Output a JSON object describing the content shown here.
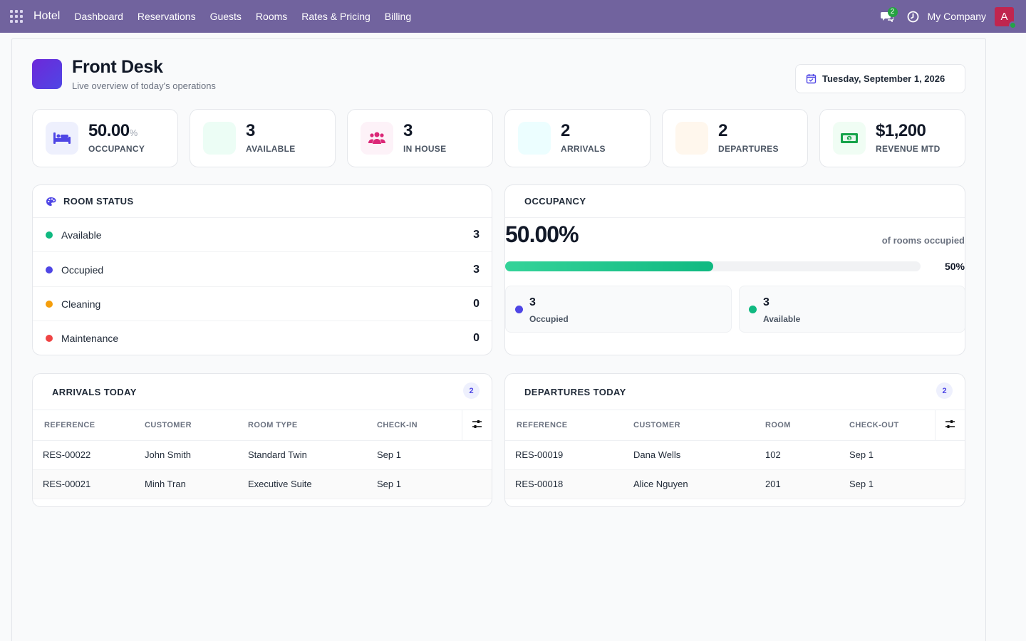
{
  "nav": {
    "brand": "Hotel",
    "menu": [
      "Dashboard",
      "Reservations",
      "Guests",
      "Rooms",
      "Rates & Pricing",
      "Billing"
    ],
    "chat_count": "2",
    "company": "My Company",
    "avatar_letter": "A"
  },
  "header": {
    "title": "Front Desk",
    "subtitle": "Live overview of today's operations",
    "date": "Tuesday, September 1, 2026"
  },
  "stats": [
    {
      "value": "50.00",
      "unit": "%",
      "label": "OCCUPANCY",
      "icon": "bed-icon",
      "color": "#4f46e5"
    },
    {
      "value": "3",
      "label": "AVAILABLE",
      "icon": "check-icon",
      "color": "#10b981"
    },
    {
      "value": "3",
      "label": "IN HOUSE",
      "icon": "users-icon",
      "color": "#db2777"
    },
    {
      "value": "2",
      "label": "ARRIVALS",
      "icon": "arrival-icon",
      "color": "#06b6d4"
    },
    {
      "value": "2",
      "label": "DEPARTURES",
      "icon": "departure-icon",
      "color": "#f97316"
    },
    {
      "value": "$1,200",
      "label": "REVENUE MTD",
      "icon": "money-icon",
      "color": "#16a34a"
    }
  ],
  "room_status": {
    "title": "ROOM STATUS",
    "items": [
      {
        "label": "Available",
        "count": "3",
        "color": "#10b981"
      },
      {
        "label": "Occupied",
        "count": "3",
        "color": "#4f46e5"
      },
      {
        "label": "Cleaning",
        "count": "0",
        "color": "#f59e0b"
      },
      {
        "label": "Maintenance",
        "count": "0",
        "color": "#ef4444"
      }
    ]
  },
  "occupancy": {
    "title": "OCCUPANCY",
    "value": "50.00%",
    "caption": "of rooms occupied",
    "progress_pct": "50%",
    "progress_fraction": 0.5,
    "occupied": {
      "value": "3",
      "label": "Occupied",
      "color": "#4f46e5"
    },
    "available": {
      "value": "3",
      "label": "Available",
      "color": "#10b981"
    }
  },
  "arrivals": {
    "title": "ARRIVALS TODAY",
    "count": "2",
    "columns": [
      "REFERENCE",
      "CUSTOMER",
      "ROOM TYPE",
      "CHECK-IN"
    ],
    "rows": [
      [
        "RES-00022",
        "John Smith",
        "Standard Twin",
        "Sep 1"
      ],
      [
        "RES-00021",
        "Minh Tran",
        "Executive Suite",
        "Sep 1"
      ]
    ]
  },
  "departures": {
    "title": "DEPARTURES TODAY",
    "count": "2",
    "columns": [
      "REFERENCE",
      "CUSTOMER",
      "ROOM",
      "CHECK-OUT"
    ],
    "rows": [
      [
        "RES-00019",
        "Dana Wells",
        "102",
        "Sep 1"
      ],
      [
        "RES-00018",
        "Alice Nguyen",
        "201",
        "Sep 1"
      ]
    ]
  }
}
